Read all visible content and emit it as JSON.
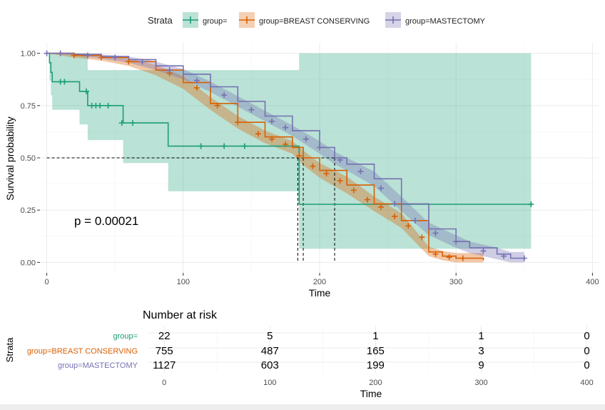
{
  "chart_data": [
    {
      "type": "line",
      "subtype": "kaplan-meier survival curve",
      "legend": {
        "title": "Strata",
        "position": "top",
        "entries": [
          "group=",
          "group=BREAST CONSERVING",
          "group=MASTECTOMY"
        ]
      },
      "xlabel": "Time",
      "ylabel": "Survival probability",
      "xlim": [
        -5,
        405
      ],
      "ylim": [
        -0.05,
        1.05
      ],
      "xticks": [
        0,
        100,
        200,
        300,
        400
      ],
      "ytick_labels": [
        "0.00",
        "0.25",
        "0.50",
        "0.75",
        "1.00"
      ],
      "grid": true,
      "annotation": "p = 0.00021",
      "medians": {
        "group=": 184,
        "group=BREAST CONSERVING": 188,
        "group=MASTECTOMY": 211
      },
      "series": [
        {
          "name": "group=",
          "color": "#1b9e77",
          "x": [
            0,
            1,
            2,
            3,
            4,
            23,
            24,
            29,
            30,
            55,
            56,
            88,
            89,
            184,
            185,
            355
          ],
          "y": [
            1.0,
            1.0,
            0.955,
            0.909,
            0.864,
            0.864,
            0.818,
            0.818,
            0.75,
            0.75,
            0.667,
            0.667,
            0.556,
            0.556,
            0.278,
            0.278
          ],
          "ci_lower": [
            1.0,
            1.0,
            0.87,
            0.8,
            0.73,
            0.73,
            0.66,
            0.66,
            0.585,
            0.585,
            0.475,
            0.475,
            0.34,
            0.34,
            0.065,
            0.065
          ],
          "ci_upper": [
            1.0,
            1.0,
            1.0,
            1.0,
            1.0,
            1.0,
            1.0,
            1.0,
            0.92,
            0.92,
            0.92,
            0.92,
            0.92,
            0.92,
            1.0,
            1.0
          ],
          "censor_x": [
            10,
            13,
            29,
            33,
            36,
            39,
            45,
            55,
            63,
            113,
            130,
            145,
            355
          ],
          "censor_y": [
            0.864,
            0.864,
            0.818,
            0.75,
            0.75,
            0.75,
            0.75,
            0.667,
            0.667,
            0.556,
            0.556,
            0.556,
            0.278
          ]
        },
        {
          "name": "group=BREAST CONSERVING",
          "color": "#d95f02",
          "x": [
            0,
            20,
            40,
            60,
            80,
            100,
            120,
            140,
            160,
            180,
            188,
            200,
            220,
            240,
            260,
            280,
            290,
            300,
            310,
            320
          ],
          "y": [
            1.0,
            0.99,
            0.98,
            0.96,
            0.92,
            0.86,
            0.76,
            0.67,
            0.6,
            0.55,
            0.5,
            0.44,
            0.37,
            0.28,
            0.2,
            0.05,
            0.03,
            0.02,
            0.02,
            0.01
          ],
          "ci_lower": [
            1.0,
            0.98,
            0.965,
            0.94,
            0.895,
            0.83,
            0.73,
            0.64,
            0.57,
            0.52,
            0.465,
            0.405,
            0.33,
            0.245,
            0.165,
            0.03,
            0.01,
            0.0,
            0.0,
            0.0
          ],
          "ci_upper": [
            1.0,
            1.0,
            0.99,
            0.975,
            0.945,
            0.89,
            0.79,
            0.7,
            0.63,
            0.58,
            0.535,
            0.475,
            0.41,
            0.315,
            0.235,
            0.075,
            0.055,
            0.045,
            0.045,
            0.045
          ],
          "censor_x": [
            20,
            40,
            60,
            90,
            110,
            125,
            140,
            155,
            165,
            175,
            185,
            195,
            205,
            215,
            225,
            235,
            245,
            255,
            265,
            275,
            285,
            295,
            305
          ],
          "censor_y": [
            0.99,
            0.98,
            0.96,
            0.905,
            0.835,
            0.75,
            0.67,
            0.615,
            0.59,
            0.565,
            0.51,
            0.46,
            0.425,
            0.39,
            0.345,
            0.3,
            0.265,
            0.22,
            0.175,
            0.12,
            0.04,
            0.025,
            0.02
          ]
        },
        {
          "name": "group=MASTECTOMY",
          "color": "#7570b3",
          "x": [
            0,
            20,
            40,
            60,
            80,
            100,
            120,
            140,
            160,
            180,
            200,
            211,
            220,
            240,
            260,
            280,
            300,
            310,
            330,
            340,
            350
          ],
          "y": [
            1.0,
            0.995,
            0.985,
            0.97,
            0.94,
            0.9,
            0.84,
            0.77,
            0.7,
            0.63,
            0.55,
            0.5,
            0.47,
            0.4,
            0.28,
            0.16,
            0.1,
            0.07,
            0.04,
            0.02,
            0.02
          ],
          "ci_lower": [
            1.0,
            0.99,
            0.975,
            0.955,
            0.92,
            0.875,
            0.815,
            0.745,
            0.675,
            0.605,
            0.52,
            0.47,
            0.44,
            0.365,
            0.245,
            0.13,
            0.07,
            0.045,
            0.015,
            0.0,
            0.0
          ],
          "ci_upper": [
            1.0,
            1.0,
            0.995,
            0.985,
            0.96,
            0.925,
            0.865,
            0.795,
            0.725,
            0.655,
            0.58,
            0.53,
            0.5,
            0.435,
            0.315,
            0.19,
            0.13,
            0.1,
            0.07,
            0.05,
            0.05
          ],
          "censor_x": [
            0,
            10,
            30,
            50,
            70,
            90,
            110,
            130,
            150,
            165,
            175,
            190,
            200,
            215,
            230,
            245,
            255,
            270,
            285,
            300,
            320,
            335,
            350
          ],
          "censor_y": [
            1.0,
            1.0,
            0.99,
            0.98,
            0.96,
            0.92,
            0.87,
            0.8,
            0.73,
            0.675,
            0.645,
            0.59,
            0.55,
            0.49,
            0.435,
            0.355,
            0.28,
            0.2,
            0.14,
            0.1,
            0.055,
            0.03,
            0.02
          ]
        }
      ]
    },
    {
      "type": "table",
      "title": "Number at risk",
      "xlabel": "Time",
      "ylabel": "Strata",
      "xticks": [
        0,
        100,
        200,
        300,
        400
      ],
      "rows": [
        {
          "label": "group=",
          "color": "#1b9e77",
          "values": [
            "22",
            "5",
            "1",
            "1",
            "0"
          ]
        },
        {
          "label": "group=BREAST CONSERVING",
          "color": "#d95f02",
          "values": [
            "755",
            "487",
            "165",
            "3",
            "0"
          ]
        },
        {
          "label": "group=MASTECTOMY",
          "color": "#7570b3",
          "values": [
            "1127",
            "603",
            "199",
            "9",
            "0"
          ]
        }
      ]
    }
  ]
}
